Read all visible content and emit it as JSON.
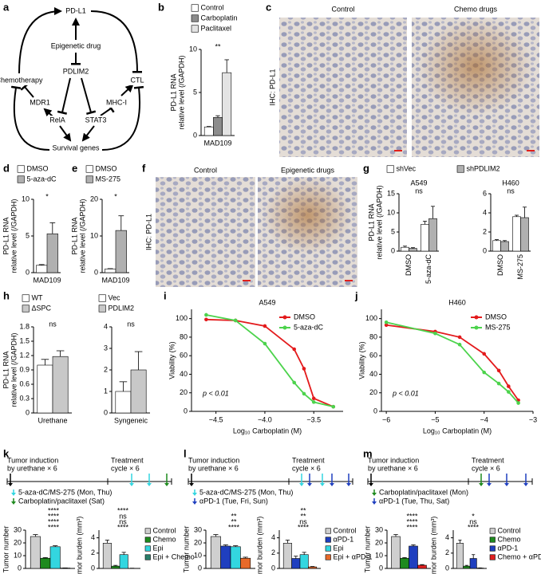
{
  "panel_labels": [
    "a",
    "b",
    "c",
    "d",
    "e",
    "f",
    "g",
    "h",
    "i",
    "j",
    "k",
    "l",
    "m"
  ],
  "diagram": {
    "nodes": [
      {
        "label": "PD-L1",
        "color": "#000000"
      },
      {
        "label": "Epigenetic drug",
        "color": "#000000"
      },
      {
        "label": "PDLIM2",
        "color": "#d7191c"
      },
      {
        "label": "Chemotherapy",
        "color": "#000000"
      },
      {
        "label": "CTL",
        "color": "#000000"
      },
      {
        "label": "MDR1",
        "color": "#000000"
      },
      {
        "label": "MHC-I",
        "color": "#000000"
      },
      {
        "label": "RelA",
        "color": "#000000"
      },
      {
        "label": "STAT3",
        "color": "#000000"
      },
      {
        "label": "Survival genes",
        "color": "#000000"
      }
    ]
  },
  "images": [
    {
      "labels": [
        "Control",
        "Chemo drugs"
      ],
      "stain": "IHC: PD-L1"
    },
    {
      "labels": [
        "Control",
        "Epigenetic drugs"
      ],
      "stain": "IHC: PD-L1"
    }
  ],
  "timelines": [
    {
      "induction": [
        "Tumor induction",
        "by urethane × 6"
      ],
      "treatment": [
        "Treatment",
        "cycle × 6"
      ],
      "drugs": [
        {
          "label": "5-aza-dC/MS-275 (Mon, Thu)",
          "color": "#33d6e0"
        },
        {
          "label": "Carboplatin/paclitaxel (Sat)",
          "color": "#1e8a1e"
        }
      ]
    },
    {
      "induction": [
        "Tumor induction",
        "by urethane × 6"
      ],
      "treatment": [
        "Treatment",
        "cycle × 6"
      ],
      "drugs": [
        {
          "label": "5-aza-dC/MS-275 (Mon, Thu)",
          "color": "#33d6e0"
        },
        {
          "label": "αPD-1 (Tue, Fri, Sun)",
          "color": "#1f3fbf"
        }
      ]
    },
    {
      "induction": [
        "Tumor induction",
        "by urethane × 6"
      ],
      "treatment": [
        "Treatment",
        "cycle × 6"
      ],
      "drugs": [
        {
          "label": "Carboplatin/paclitaxel (Mon)",
          "color": "#1e8a1e"
        },
        {
          "label": "αPD-1 (Tue, Thu, Sat)",
          "color": "#1f3fbf"
        }
      ]
    }
  ],
  "chart_data": [
    {
      "type": "bar",
      "ylabel": [
        "PD-L1 RNA",
        "relative level (/GAPDH)"
      ],
      "categories": [
        "MAD109"
      ],
      "ylim": [
        0,
        10
      ],
      "yticks": [
        0,
        5,
        10
      ],
      "annotations": [
        "**"
      ],
      "series": [
        {
          "name": "Control",
          "color": "#ffffff",
          "values": [
            1.0
          ],
          "errors": [
            0.05
          ]
        },
        {
          "name": "Carboplatin",
          "color": "#8c8c8c",
          "values": [
            2.1
          ],
          "errors": [
            0.2
          ]
        },
        {
          "name": "Paclitaxel",
          "color": "#e3e3e3",
          "values": [
            7.3
          ],
          "errors": [
            1.5
          ]
        }
      ]
    },
    {
      "type": "bar",
      "ylabel": [
        "PD-L1 RNA",
        "relative level (/GAPDH)"
      ],
      "categories": [
        "MAD109"
      ],
      "ylim": [
        0,
        10
      ],
      "yticks": [
        0,
        5,
        10
      ],
      "annotations": [
        "*"
      ],
      "series": [
        {
          "name": "DMSO",
          "color": "#ffffff",
          "values": [
            1.0
          ],
          "errors": [
            0.1
          ]
        },
        {
          "name": "5-aza-dC",
          "color": "#b0b0b0",
          "values": [
            5.3
          ],
          "errors": [
            1.5
          ]
        }
      ]
    },
    {
      "type": "bar",
      "ylabel": [
        "PD-L1 RNA",
        "relative level (/GAPDH)"
      ],
      "categories": [
        "MAD109"
      ],
      "ylim": [
        0,
        20
      ],
      "yticks": [
        0,
        10,
        20
      ],
      "annotations": [
        "*"
      ],
      "series": [
        {
          "name": "DMSO",
          "color": "#ffffff",
          "values": [
            1.0
          ],
          "errors": [
            0.1
          ]
        },
        {
          "name": "MS-275",
          "color": "#b0b0b0",
          "values": [
            11.5
          ],
          "errors": [
            4
          ]
        }
      ]
    },
    {
      "type": "bar",
      "title": "A549",
      "ylabel": [
        "PD-L1 RNA",
        "relative level (/GAPDH)"
      ],
      "categories": [
        "DMSO",
        "5-aza-dC"
      ],
      "ylim": [
        0,
        15
      ],
      "yticks": [
        0,
        5,
        10,
        15
      ],
      "annotations": [
        "ns"
      ],
      "series": [
        {
          "name": "shVec",
          "color": "#ffffff",
          "values": [
            1.0,
            7.0
          ],
          "errors": [
            0.3,
            0.8
          ]
        },
        {
          "name": "shPDLIM2",
          "color": "#b0b0b0",
          "values": [
            0.7,
            8.5
          ],
          "errors": [
            0.2,
            3.2
          ]
        }
      ]
    },
    {
      "type": "bar",
      "title": "H460",
      "categories": [
        "DMSO",
        "MS-275"
      ],
      "ylim": [
        0,
        6
      ],
      "yticks": [
        0,
        2,
        4,
        6
      ],
      "annotations": [
        "ns"
      ],
      "series": [
        {
          "color": "#ffffff",
          "values": [
            1.1,
            3.6
          ],
          "errors": [
            0.1,
            0.15
          ]
        },
        {
          "color": "#b0b0b0",
          "values": [
            1.0,
            3.5
          ],
          "errors": [
            0.1,
            1.1
          ]
        }
      ]
    },
    {
      "type": "bar",
      "ylabel": [
        "PD-L1 RNA",
        "relative level (/GAPDH)"
      ],
      "categories": [
        "Urethane"
      ],
      "ylim": [
        0,
        1.8
      ],
      "yticks": [
        0,
        0.3,
        0.6,
        0.9,
        1.2,
        1.5,
        1.8
      ],
      "annotations": [
        "ns"
      ],
      "series": [
        {
          "name": "WT",
          "color": "#ffffff",
          "values": [
            1.0
          ],
          "errors": [
            0.12
          ]
        },
        {
          "name": "ΔSPC",
          "color": "#c8c8c8",
          "values": [
            1.18
          ],
          "errors": [
            0.12
          ]
        }
      ]
    },
    {
      "type": "bar",
      "categories": [
        "Syngeneic"
      ],
      "ylim": [
        0,
        4
      ],
      "yticks": [
        0,
        1,
        2,
        3,
        4
      ],
      "annotations": [
        "ns"
      ],
      "series": [
        {
          "name": "Vec",
          "color": "#ffffff",
          "values": [
            1.0
          ],
          "errors": [
            0.45
          ]
        },
        {
          "name": "PDLIM2",
          "color": "#c8c8c8",
          "values": [
            2.0
          ],
          "errors": [
            0.85
          ]
        }
      ]
    },
    {
      "type": "line",
      "title": "A549",
      "ylabel": "Viability (%)",
      "xlabel": "Log₁₀ Carboplatin (M)",
      "annotations": [
        "p < 0.01"
      ],
      "xlim": [
        -4.75,
        -3.2
      ],
      "xticks": [
        {
          "value": -4.5,
          "label": "−4.5"
        },
        {
          "value": -4,
          "label": "−4.0"
        },
        {
          "value": -3.5,
          "label": "−3.5"
        }
      ],
      "ylim": [
        0,
        110
      ],
      "yticks": [
        0,
        20,
        40,
        60,
        80,
        100
      ],
      "x": [
        -4.6,
        -4.3,
        -4.0,
        -3.7,
        -3.6,
        -3.5,
        -3.3
      ],
      "series": [
        {
          "name": "DMSO",
          "color": "#e31a1c",
          "values": [
            99,
            98,
            92,
            67,
            46,
            14,
            5
          ]
        },
        {
          "name": "5-aza-dC",
          "color": "#4cd34c",
          "values": [
            104,
            98,
            73,
            31,
            19,
            10,
            5
          ]
        }
      ]
    },
    {
      "type": "line",
      "title": "H460",
      "ylabel": "Viability (%)",
      "xlabel": "Log₁₀ Carboplatin (M)",
      "annotations": [
        "p < 0.01"
      ],
      "xlim": [
        -6.1,
        -3
      ],
      "xticks": [
        {
          "value": -6,
          "label": "−6"
        },
        {
          "value": -5,
          "label": "−5"
        },
        {
          "value": -4,
          "label": "−4"
        },
        {
          "value": -3,
          "label": "−3"
        }
      ],
      "ylim": [
        0,
        110
      ],
      "yticks": [
        0,
        20,
        40,
        60,
        80,
        100
      ],
      "x": [
        -6,
        -5,
        -4.5,
        -4,
        -3.7,
        -3.5,
        -3.3
      ],
      "series": [
        {
          "name": "DMSO",
          "color": "#e31a1c",
          "values": [
            93,
            86,
            80,
            62,
            44,
            27,
            12
          ]
        },
        {
          "name": "MS-275",
          "color": "#4cd34c",
          "values": [
            96,
            84,
            72,
            42,
            30,
            21,
            9
          ]
        }
      ]
    },
    {
      "type": "bar",
      "ylabel": "Tumor number",
      "categories": [
        null
      ],
      "ylim": [
        0,
        30
      ],
      "yticks": [
        0,
        10,
        20,
        30
      ],
      "annotations": [
        "****",
        "****",
        "****",
        "****"
      ],
      "series": [
        {
          "color": "#cfcfcf",
          "values": [
            25
          ],
          "errors": [
            1.5
          ]
        },
        {
          "color": "#1e8a1e",
          "values": [
            8
          ],
          "errors": [
            0.5
          ]
        },
        {
          "color": "#33d6e0",
          "values": [
            17
          ],
          "errors": [
            0.8
          ]
        },
        {
          "color": "#2a7f6a",
          "values": [
            0.3
          ],
          "errors": [
            0.1
          ]
        }
      ]
    },
    {
      "type": "bar",
      "ylabel": "Tumor burden (mm³)",
      "categories": [
        null
      ],
      "ylim": [
        0,
        5
      ],
      "yticks": [
        0,
        2,
        4
      ],
      "annotations": [
        "****",
        "ns",
        "ns",
        "****"
      ],
      "series": [
        {
          "name": "Control",
          "color": "#cfcfcf",
          "values": [
            3.3
          ],
          "errors": [
            0.4
          ]
        },
        {
          "name": "Chemo",
          "color": "#1e8a1e",
          "values": [
            0.3
          ],
          "errors": [
            0.1
          ]
        },
        {
          "name": "Epi",
          "color": "#33d6e0",
          "values": [
            1.8
          ],
          "errors": [
            0.3
          ]
        },
        {
          "name": "Epi + Chemo",
          "color": "#2a7f6a",
          "values": [
            0.02
          ],
          "errors": [
            0.01
          ]
        }
      ]
    },
    {
      "type": "bar",
      "ylabel": "Tumor number",
      "categories": [
        null
      ],
      "ylim": [
        0,
        30
      ],
      "yticks": [
        0,
        10,
        20,
        30
      ],
      "annotations": [
        "****",
        "**",
        "**"
      ],
      "series": [
        {
          "color": "#cfcfcf",
          "values": [
            25
          ],
          "errors": [
            1.5
          ]
        },
        {
          "color": "#1f3fbf",
          "values": [
            17.5
          ],
          "errors": [
            1
          ]
        },
        {
          "color": "#33d6e0",
          "values": [
            17
          ],
          "errors": [
            0.8
          ]
        },
        {
          "color": "#e86a2a",
          "values": [
            8
          ],
          "errors": [
            0.8
          ]
        }
      ]
    },
    {
      "type": "bar",
      "ylabel": "Tumor burden (mm³)",
      "categories": [
        null
      ],
      "ylim": [
        0,
        5
      ],
      "yticks": [
        0,
        2,
        4
      ],
      "annotations": [
        "****",
        "ns",
        "**",
        "**"
      ],
      "series": [
        {
          "name": "Control",
          "color": "#cfcfcf",
          "values": [
            3.3
          ],
          "errors": [
            0.4
          ]
        },
        {
          "name": "αPD-1",
          "color": "#1f3fbf",
          "values": [
            1.3
          ],
          "errors": [
            0.3
          ]
        },
        {
          "name": "Epi",
          "color": "#33d6e0",
          "values": [
            1.8
          ],
          "errors": [
            0.3
          ]
        },
        {
          "name": "Epi + αPD-1",
          "color": "#e86a2a",
          "values": [
            0.2
          ],
          "errors": [
            0.05
          ]
        }
      ]
    },
    {
      "type": "bar",
      "ylabel": "Tumor number",
      "categories": [
        null
      ],
      "ylim": [
        0,
        30
      ],
      "yticks": [
        0,
        10,
        20,
        30
      ],
      "annotations": [
        "****",
        "****",
        "****"
      ],
      "series": [
        {
          "color": "#cfcfcf",
          "values": [
            25
          ],
          "errors": [
            1.5
          ]
        },
        {
          "color": "#1e8a1e",
          "values": [
            8
          ],
          "errors": [
            0.5
          ]
        },
        {
          "color": "#1f3fbf",
          "values": [
            17.5
          ],
          "errors": [
            1
          ]
        },
        {
          "color": "#e02020",
          "values": [
            2.5
          ],
          "errors": [
            0.5
          ]
        }
      ]
    },
    {
      "type": "bar",
      "ylabel": "Tumor burden (mm³)",
      "categories": [
        null
      ],
      "ylim": [
        0,
        5
      ],
      "yticks": [
        0,
        2,
        4
      ],
      "annotations": [
        "****",
        "ns",
        "*"
      ],
      "series": [
        {
          "name": "Control",
          "color": "#cfcfcf",
          "values": [
            3.3
          ],
          "errors": [
            0.4
          ]
        },
        {
          "name": "Chemo",
          "color": "#1e8a1e",
          "values": [
            0.3
          ],
          "errors": [
            0.1
          ]
        },
        {
          "name": "αPD-1",
          "color": "#1f3fbf",
          "values": [
            1.3
          ],
          "errors": [
            0.5
          ]
        },
        {
          "name": "Chemo + αPD-1",
          "color": "#e02020",
          "values": [
            0.05
          ],
          "errors": [
            0.02
          ]
        }
      ]
    }
  ]
}
